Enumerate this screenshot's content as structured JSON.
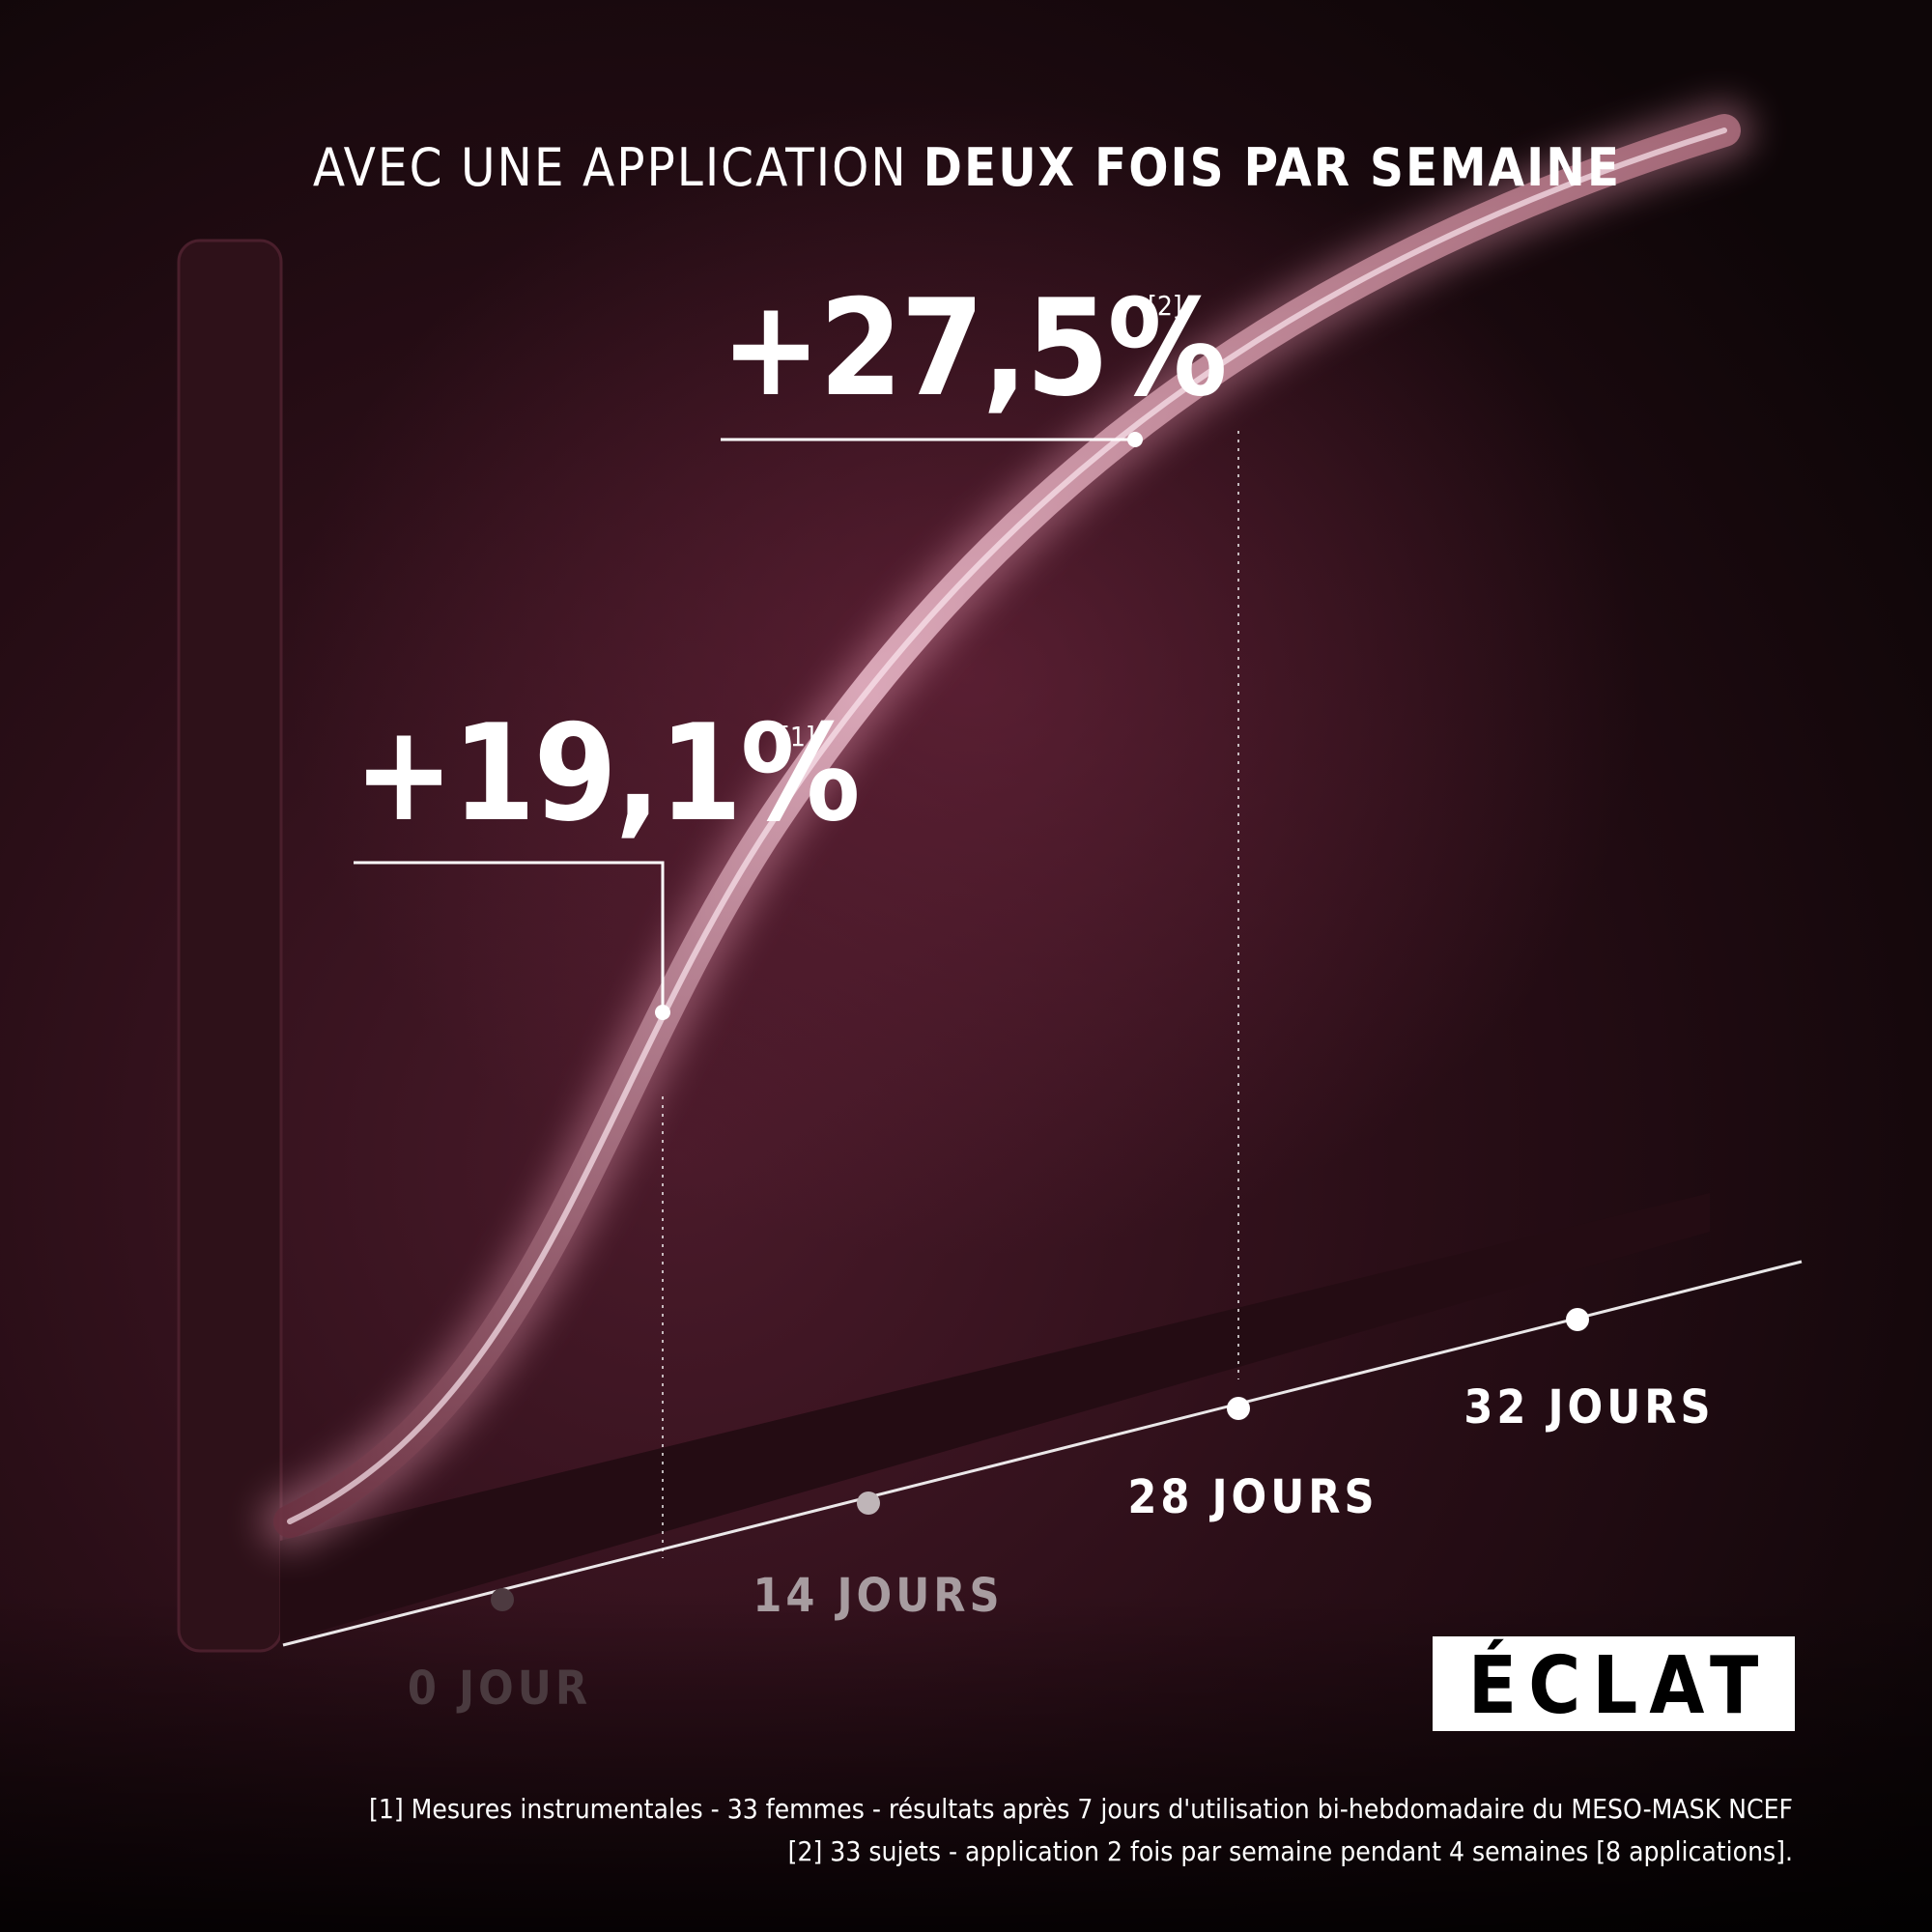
{
  "title": {
    "regular": "AVEC UNE APPLICATION",
    "bold": "DEUX FOIS PAR SEMAINE"
  },
  "callouts": [
    {
      "value": "+27,5%",
      "note": "[2]"
    },
    {
      "value": "+19,1%",
      "note": "[1]"
    }
  ],
  "timeline": [
    "0 JOUR",
    "14 JOURS",
    "28 JOURS",
    "32 JOURS"
  ],
  "badge": "ÉCLAT",
  "footnotes": [
    "[1] Mesures instrumentales - 33 femmes - résultats après 7 jours d'utilisation bi-hebdomadaire du MESO-MASK NCEF",
    "[2] 33 sujets - application 2 fois par semaine pendant 4 semaines [8 applications]."
  ]
}
